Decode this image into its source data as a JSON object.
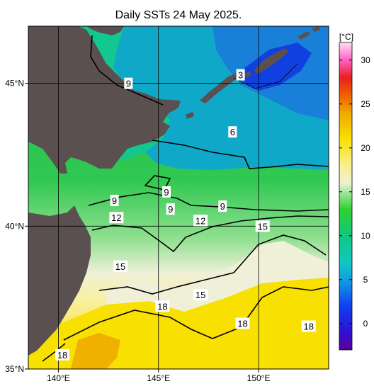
{
  "title": "Daily SSTs 24 May 2025.",
  "map": {
    "lon_range": [
      138.5,
      153.5
    ],
    "lat_range": [
      35,
      47
    ],
    "lon_ticks": [
      {
        "value": 140,
        "label": "140°E"
      },
      {
        "value": 145,
        "label": "145°E"
      },
      {
        "value": 150,
        "label": "150°E"
      }
    ],
    "lat_ticks": [
      {
        "value": 45,
        "label": "45°N"
      },
      {
        "value": 40,
        "label": "40°N"
      },
      {
        "value": 35,
        "label": "35°N"
      }
    ],
    "land_color": "#5a5050",
    "contour_labels": [
      {
        "text": "3",
        "lon": 149.1,
        "lat": 45.3
      },
      {
        "text": "9",
        "lon": 143.5,
        "lat": 45.0
      },
      {
        "text": "6",
        "lon": 148.7,
        "lat": 43.3
      },
      {
        "text": "9",
        "lon": 145.4,
        "lat": 41.2
      },
      {
        "text": "9",
        "lon": 142.8,
        "lat": 40.9
      },
      {
        "text": "9",
        "lon": 145.6,
        "lat": 40.6
      },
      {
        "text": "9",
        "lon": 148.2,
        "lat": 40.7
      },
      {
        "text": "12",
        "lon": 142.9,
        "lat": 40.3
      },
      {
        "text": "12",
        "lon": 147.1,
        "lat": 40.2
      },
      {
        "text": "15",
        "lon": 150.2,
        "lat": 40.0
      },
      {
        "text": "15",
        "lon": 143.1,
        "lat": 38.6
      },
      {
        "text": "15",
        "lon": 147.1,
        "lat": 37.6
      },
      {
        "text": "18",
        "lon": 145.2,
        "lat": 37.2
      },
      {
        "text": "18",
        "lon": 149.2,
        "lat": 36.6
      },
      {
        "text": "18",
        "lon": 152.5,
        "lat": 36.5
      },
      {
        "text": "18",
        "lon": 140.2,
        "lat": 35.5
      }
    ]
  },
  "colorbar": {
    "unit": "[°C]",
    "range": [
      -3,
      32
    ],
    "ticks": [
      "30",
      "25",
      "20",
      "15",
      "10",
      "5",
      "0"
    ],
    "tick_values": [
      30,
      25,
      20,
      15,
      10,
      5,
      0
    ],
    "stops": [
      {
        "value": -3,
        "color": "#5a00a0"
      },
      {
        "value": -1,
        "color": "#3010d0"
      },
      {
        "value": 2,
        "color": "#1040f0"
      },
      {
        "value": 5,
        "color": "#10a0e0"
      },
      {
        "value": 7,
        "color": "#10c8c0"
      },
      {
        "value": 10,
        "color": "#10c880"
      },
      {
        "value": 13,
        "color": "#30d030"
      },
      {
        "value": 15,
        "color": "#a8e8a0"
      },
      {
        "value": 16,
        "color": "#f0f0d0"
      },
      {
        "value": 18,
        "color": "#f8f090"
      },
      {
        "value": 21,
        "color": "#f8e000"
      },
      {
        "value": 24,
        "color": "#f0a800"
      },
      {
        "value": 26,
        "color": "#f06000"
      },
      {
        "value": 28,
        "color": "#e82020"
      },
      {
        "value": 30,
        "color": "#ff60c0"
      },
      {
        "value": 32,
        "color": "#ffe0f8"
      }
    ]
  }
}
